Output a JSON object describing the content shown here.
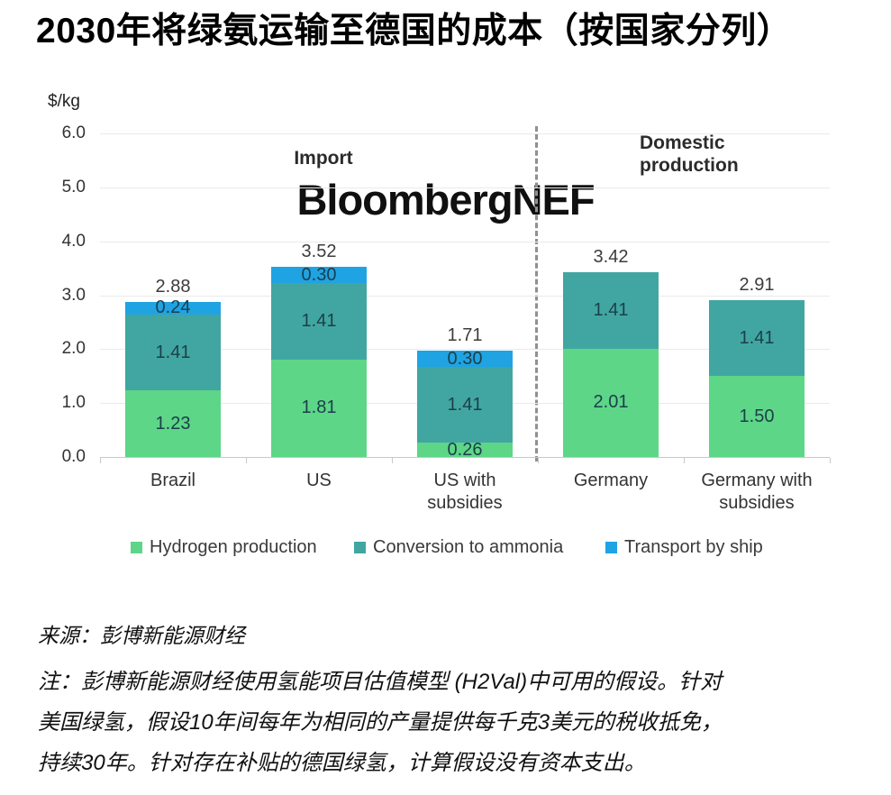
{
  "title": "2030年将绿氨运输至德国的成本（按国家分列）",
  "watermark": "BloombergNEF",
  "y_axis_unit": "$/kg",
  "group_labels": {
    "import": "Import",
    "domestic": "Domestic production"
  },
  "chart_data": {
    "type": "bar",
    "stacked": true,
    "title": "2030年将绿氨运输至德国的成本（按国家分列）",
    "ylabel": "$/kg",
    "ylim": [
      0,
      6
    ],
    "y_tick_step": 1.0,
    "y_ticks": [
      "6.0",
      "5.0",
      "4.0",
      "3.0",
      "2.0",
      "1.0",
      "0.0"
    ],
    "grid": true,
    "legend_position": "bottom",
    "categories": [
      "Brazil",
      "US",
      "US with subsidies",
      "Germany",
      "Germany with subsidies"
    ],
    "series": [
      {
        "name": "Hydrogen production",
        "color": "#5DD687",
        "values": [
          1.23,
          1.81,
          0.26,
          2.01,
          1.5
        ]
      },
      {
        "name": "Conversion to ammonia",
        "color": "#41A6A1",
        "values": [
          1.41,
          1.41,
          1.41,
          1.41,
          1.41
        ]
      },
      {
        "name": "Transport by ship",
        "color": "#1FA3E3",
        "values": [
          0.24,
          0.3,
          0.3,
          0,
          0
        ]
      }
    ],
    "totals": [
      "2.88",
      "3.52",
      "1.71",
      "3.42",
      "2.91"
    ],
    "groups": [
      {
        "label": "Import",
        "categories": [
          "Brazil",
          "US",
          "US with subsidies"
        ]
      },
      {
        "label": "Domestic production",
        "categories": [
          "Germany",
          "Germany with subsidies"
        ]
      }
    ]
  },
  "footer": {
    "source": "来源：彭博新能源财经",
    "note_lines": [
      "注：彭博新能源财经使用氢能项目估值模型 (H2Val)中可用的假设。针对",
      "美国绿氢，假设10年间每年为相同的产量提供每千克3美元的税收抵免，",
      "持续30年。针对存在补贴的德国绿氢，计算假设没有资本支出。"
    ]
  }
}
